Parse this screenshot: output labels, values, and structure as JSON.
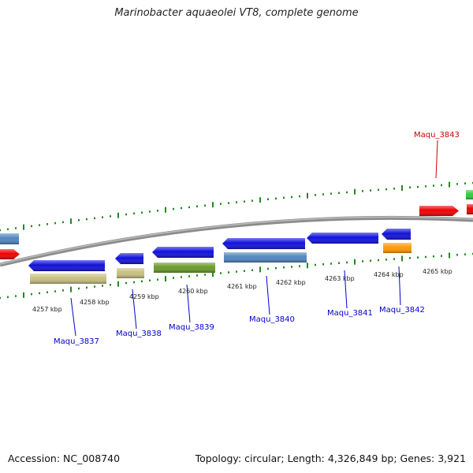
{
  "title": "Marinobacter aquaeolei VT8, complete genome",
  "footer": {
    "accession": "Accession: NC_008740",
    "summary": "Topology: circular; Length: 4,326,849 bp; Genes: 3,921"
  },
  "colors": {
    "backbone": "#8c8c8c",
    "tick": "#1f8a1f",
    "label_forward": "#cc0000",
    "label_reverse": "#0000cc"
  },
  "scale_labels": [
    "4257 kbp",
    "4258 kbp",
    "4259 kbp",
    "4260 kbp",
    "4261 kbp",
    "4262 kbp",
    "4263 kbp",
    "4264 kbp",
    "4265 kbp"
  ],
  "gene_labels": [
    {
      "text": "Maqu_3837",
      "color": "#0000cc"
    },
    {
      "text": "Maqu_3838",
      "color": "#0000cc"
    },
    {
      "text": "Maqu_3839",
      "color": "#0000cc"
    },
    {
      "text": "Maqu_3840",
      "color": "#0000cc"
    },
    {
      "text": "Maqu_3841",
      "color": "#0000cc"
    },
    {
      "text": "Maqu_3842",
      "color": "#0000cc"
    },
    {
      "text": "Maqu_3843",
      "color": "#cc0000"
    }
  ],
  "features": [
    {
      "name": "left-steelblue",
      "color": "#4f86c0",
      "strand": "forward"
    },
    {
      "name": "left-red",
      "color": "#ee0000",
      "strand": "forward"
    },
    {
      "name": "maqu-3837-cds",
      "color": "#1010dd",
      "strand": "reverse"
    },
    {
      "name": "maqu-3837-rna",
      "color": "#c8c080",
      "strand": "reverse"
    },
    {
      "name": "maqu-3838-cds",
      "color": "#1010dd",
      "strand": "reverse"
    },
    {
      "name": "maqu-3838-rna",
      "color": "#c8c080",
      "strand": "reverse"
    },
    {
      "name": "maqu-3839-cds",
      "color": "#1010dd",
      "strand": "reverse"
    },
    {
      "name": "maqu-3839-rna",
      "color": "#6a9a2a",
      "strand": "reverse"
    },
    {
      "name": "maqu-3840-cds",
      "color": "#1010dd",
      "strand": "reverse"
    },
    {
      "name": "maqu-3840-rna",
      "color": "#4f86c0",
      "strand": "reverse"
    },
    {
      "name": "maqu-3841-cds",
      "color": "#1010dd",
      "strand": "reverse"
    },
    {
      "name": "maqu-3842-cds",
      "color": "#1010dd",
      "strand": "reverse"
    },
    {
      "name": "maqu-3842-rna",
      "color": "#ff9900",
      "strand": "reverse"
    },
    {
      "name": "maqu-3843-cds",
      "color": "#ee0000",
      "strand": "forward"
    },
    {
      "name": "right-green",
      "color": "#33cc33",
      "strand": "forward"
    },
    {
      "name": "right-red",
      "color": "#ee0000",
      "strand": "forward"
    }
  ]
}
